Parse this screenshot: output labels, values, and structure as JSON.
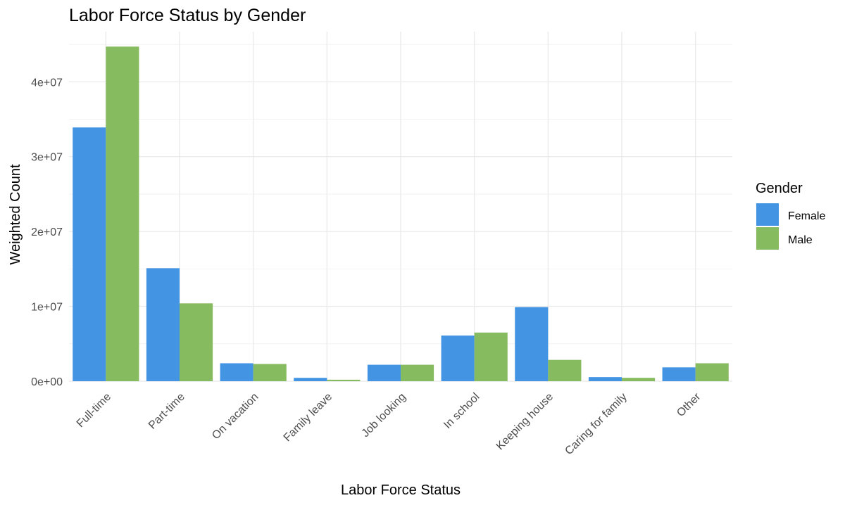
{
  "chart_data": {
    "type": "bar",
    "title": "Labor Force Status by Gender",
    "xlabel": "Labor Force Status",
    "ylabel": "Weighted Count",
    "categories": [
      "Full-time",
      "Part-time",
      "On vacation",
      "Family leave",
      "Job looking",
      "In school",
      "Keeping house",
      "Caring for family",
      "Other"
    ],
    "series": [
      {
        "name": "Female",
        "color": "#4494e4",
        "values": [
          33900000,
          15100000,
          2400000,
          450000,
          2200000,
          6100000,
          9900000,
          550000,
          1850000
        ]
      },
      {
        "name": "Male",
        "color": "#87bb5f",
        "values": [
          44700000,
          10400000,
          2300000,
          200000,
          2200000,
          6500000,
          2850000,
          450000,
          2400000
        ]
      }
    ],
    "ylim": [
      0,
      46700000
    ],
    "yticks": [
      0,
      10000000,
      20000000,
      30000000,
      40000000
    ],
    "ytick_labels": [
      "0e+00",
      "1e+07",
      "2e+07",
      "3e+07",
      "4e+07"
    ],
    "grid": true,
    "legend": {
      "title": "Gender",
      "position": "right"
    }
  }
}
